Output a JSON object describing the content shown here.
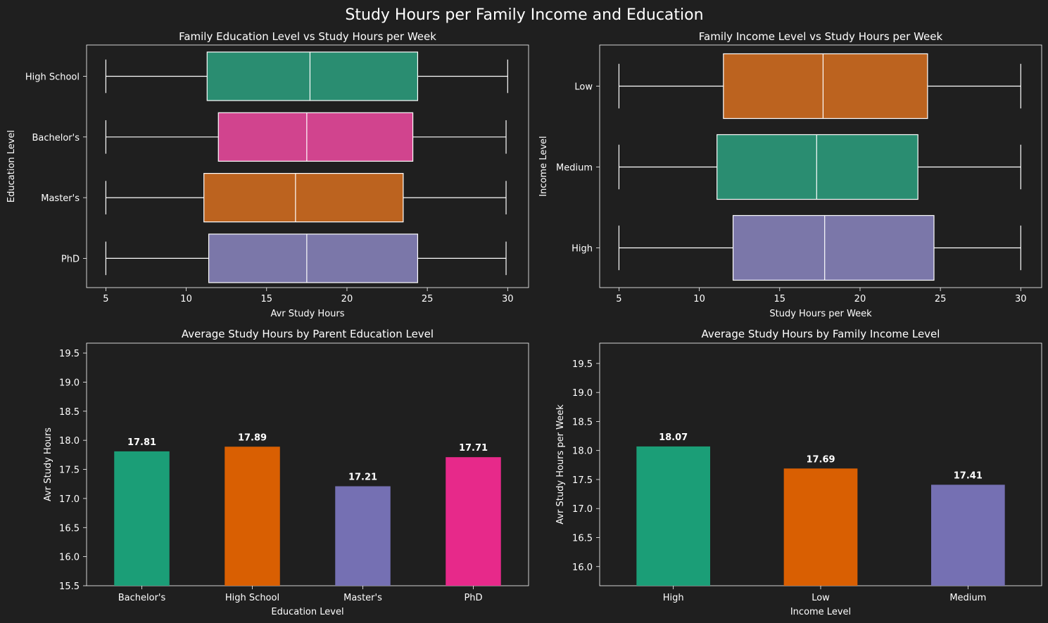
{
  "suptitle": "Study Hours per Family Income and Education",
  "colors": {
    "background": "#1f1f1f",
    "teal": "#2a8d71",
    "pink": "#d1448e",
    "orange": "#bc631f",
    "purple": "#7b77a9",
    "bar_teal": "#1b9e77",
    "bar_orange": "#d95f02",
    "bar_purple": "#7570b3",
    "bar_pink": "#e7298a"
  },
  "chart_data": [
    {
      "type": "boxplot",
      "orientation": "horizontal",
      "title": "Family Education Level vs Study Hours per Week",
      "xlabel": "Avr Study Hours",
      "ylabel": "Education Level",
      "xlim": [
        3.8,
        31.3
      ],
      "xticks": [
        5,
        10,
        15,
        20,
        25,
        30
      ],
      "grid": false,
      "categories": [
        "High School",
        "Bachelor's",
        "Master's",
        "PhD"
      ],
      "boxes": [
        {
          "category": "High School",
          "min": 5,
          "q1": 11.3,
          "median": 17.7,
          "q3": 24.4,
          "max": 30,
          "color": "#2a8d71"
        },
        {
          "category": "Bachelor's",
          "min": 5,
          "q1": 12.0,
          "median": 17.5,
          "q3": 24.1,
          "max": 29.9,
          "color": "#d1448e"
        },
        {
          "category": "Master's",
          "min": 5,
          "q1": 11.1,
          "median": 16.8,
          "q3": 23.5,
          "max": 29.9,
          "color": "#bc631f"
        },
        {
          "category": "PhD",
          "min": 5,
          "q1": 11.4,
          "median": 17.5,
          "q3": 24.4,
          "max": 29.9,
          "color": "#7b77a9"
        }
      ]
    },
    {
      "type": "boxplot",
      "orientation": "horizontal",
      "title": "Family Income Level vs Study Hours per Week",
      "xlabel": "Study Hours per Week",
      "ylabel": "Income Level",
      "xlim": [
        3.8,
        31.3
      ],
      "xticks": [
        5,
        10,
        15,
        20,
        25,
        30
      ],
      "grid": false,
      "categories": [
        "Low",
        "Medium",
        "High"
      ],
      "boxes": [
        {
          "category": "Low",
          "min": 5,
          "q1": 11.5,
          "median": 17.7,
          "q3": 24.2,
          "max": 30,
          "color": "#bc631f"
        },
        {
          "category": "Medium",
          "min": 5,
          "q1": 11.1,
          "median": 17.3,
          "q3": 23.6,
          "max": 30,
          "color": "#2a8d71"
        },
        {
          "category": "High",
          "min": 5,
          "q1": 12.1,
          "median": 17.8,
          "q3": 24.6,
          "max": 30,
          "color": "#7b77a9"
        }
      ]
    },
    {
      "type": "bar",
      "title": "Average Study Hours by Parent Education Level",
      "xlabel": "Education Level",
      "ylabel": "Avr Study Hours",
      "ylim": [
        15.5,
        19.67
      ],
      "yticks": [
        15.5,
        16.0,
        16.5,
        17.0,
        17.5,
        18.0,
        18.5,
        19.0,
        19.5
      ],
      "tick_decimals": 1,
      "grid": false,
      "categories": [
        "Bachelor's",
        "High School",
        "Master's",
        "PhD"
      ],
      "values": [
        17.81,
        17.89,
        17.21,
        17.71
      ],
      "value_labels": [
        "17.81",
        "17.89",
        "17.21",
        "17.71"
      ],
      "colors": [
        "#1b9e77",
        "#d95f02",
        "#7570b3",
        "#e7298a"
      ]
    },
    {
      "type": "bar",
      "title": "Average Study Hours by Family Income Level",
      "xlabel": "Income Level",
      "ylabel": "Avr Study Hours per Week",
      "ylim": [
        15.67,
        19.85
      ],
      "yticks": [
        16.0,
        16.5,
        17.0,
        17.5,
        18.0,
        18.5,
        19.0,
        19.5
      ],
      "tick_decimals": 1,
      "grid": false,
      "categories": [
        "High",
        "Low",
        "Medium"
      ],
      "values": [
        18.07,
        17.69,
        17.41
      ],
      "value_labels": [
        "18.07",
        "17.69",
        "17.41"
      ],
      "colors": [
        "#1b9e77",
        "#d95f02",
        "#7570b3"
      ]
    }
  ]
}
